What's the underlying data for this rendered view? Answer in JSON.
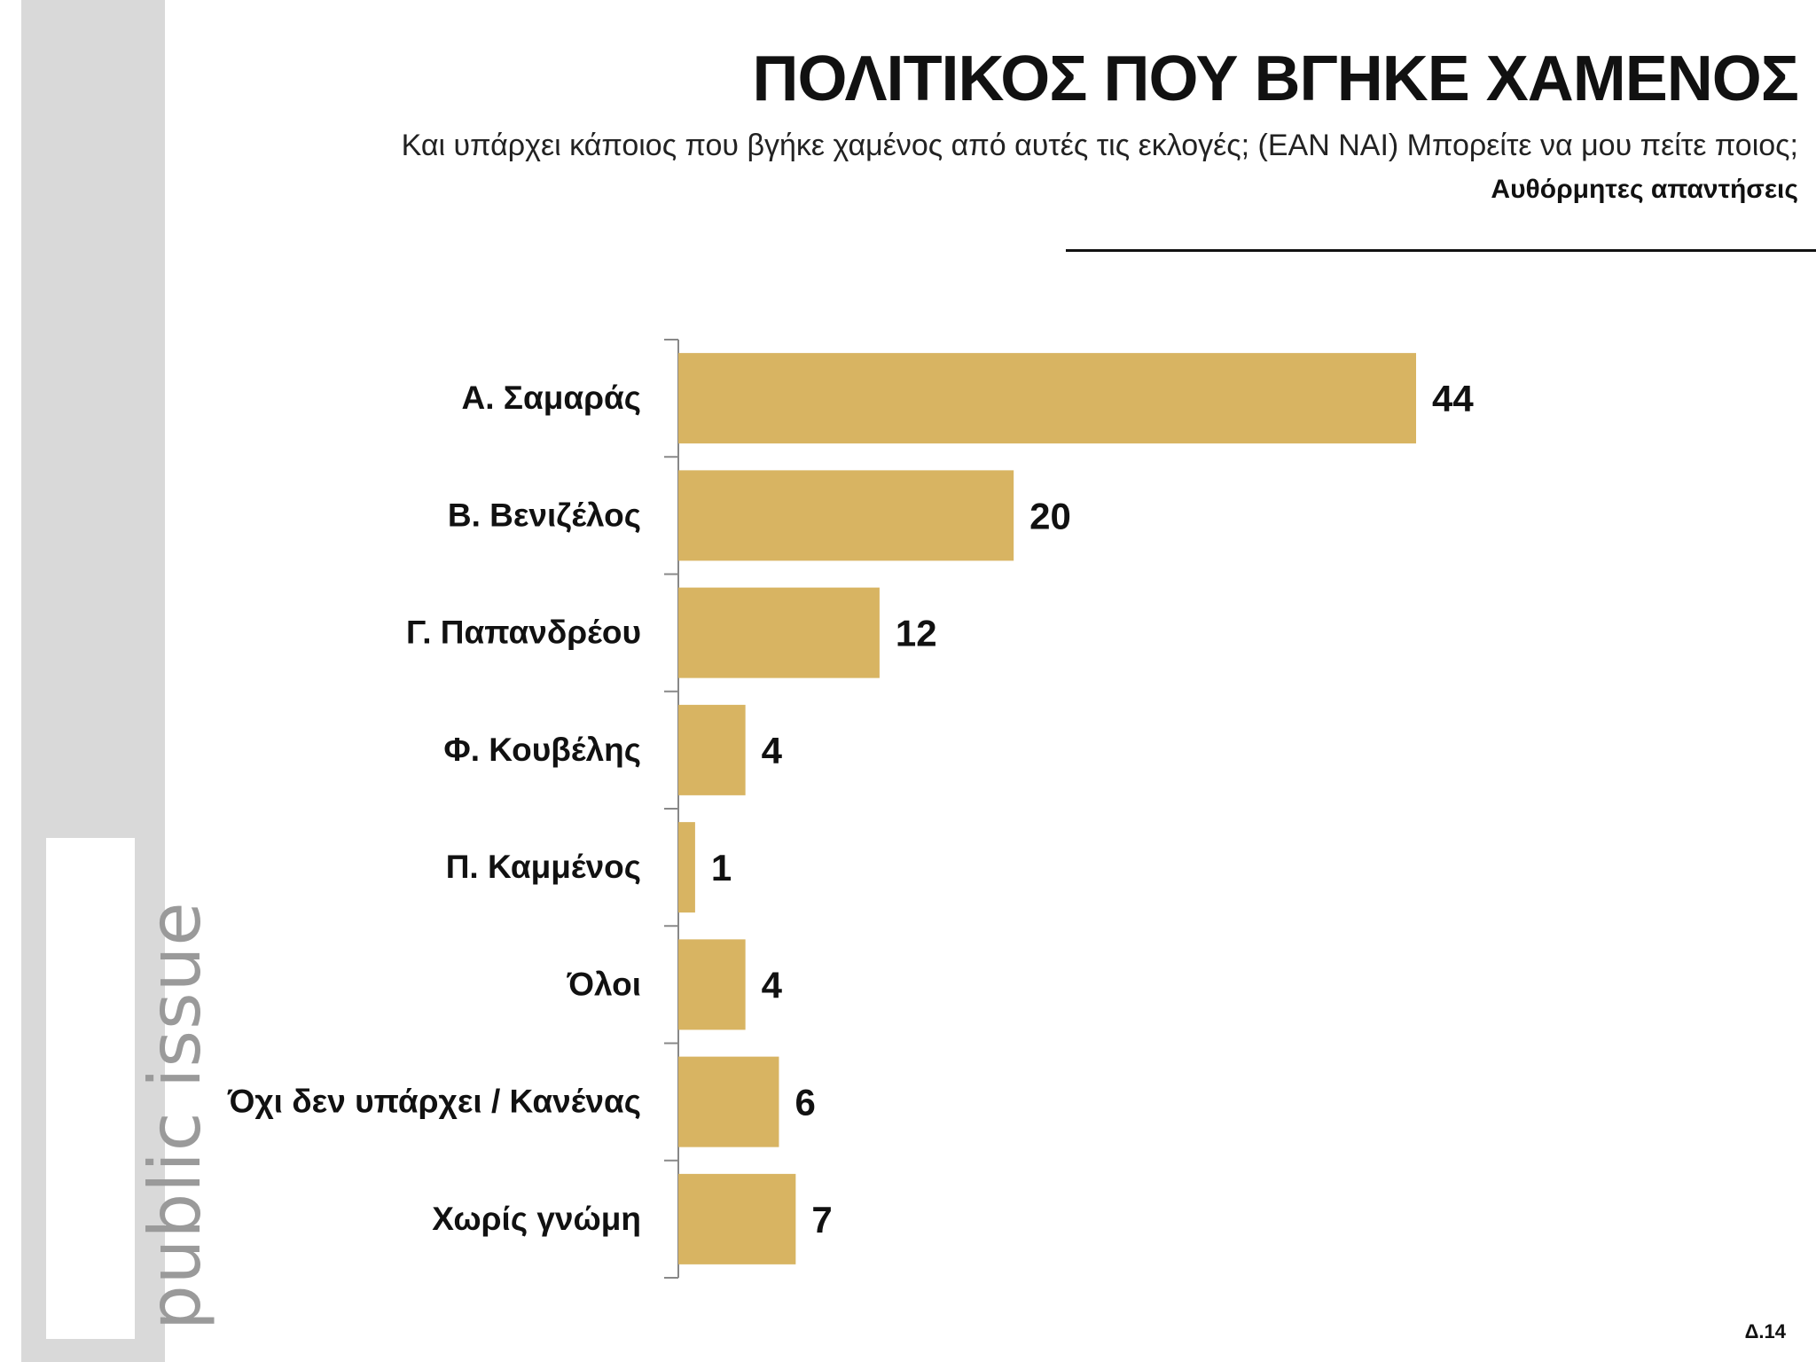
{
  "header": {
    "title": "ΠΟΛΙΤΙΚΟΣ ΠΟΥ ΒΓΗΚΕ ΧΑΜΕΝΟΣ",
    "subtitle": "Και υπάρχει κάποιος που βγήκε χαμένος από αυτές τις εκλογές; (ΕΑΝ ΝΑΙ) Μπορείτε να μου πείτε ποιος;",
    "note": "Αυθόρμητες απαντήσεις"
  },
  "brand": {
    "logo_text": "public issue"
  },
  "footer": {
    "page_number": "Δ.14"
  },
  "colors": {
    "bar": "#d8b462",
    "sidebar": "#d9d9d9",
    "brand_text": "#9a9a9a"
  },
  "chart_data": {
    "type": "bar",
    "orientation": "horizontal",
    "title": "ΠΟΛΙΤΙΚΟΣ ΠΟΥ ΒΓΗΚΕ ΧΑΜΕΝΟΣ",
    "categories": [
      "Α. Σαμαράς",
      "Β. Βενιζέλος",
      "Γ. Παπανδρέου",
      "Φ. Κουβέλης",
      "Π. Καμμένος",
      "Όλοι",
      "Όχι δεν υπάρχει / Κανένας",
      "Χωρίς γνώμη"
    ],
    "values": [
      44,
      20,
      12,
      4,
      1,
      4,
      6,
      7
    ],
    "data_labels": [
      "44",
      "20",
      "12",
      "4",
      "1",
      "4",
      "6",
      "7"
    ],
    "xlim": [
      0,
      44
    ],
    "grid": false,
    "legend": "none"
  }
}
